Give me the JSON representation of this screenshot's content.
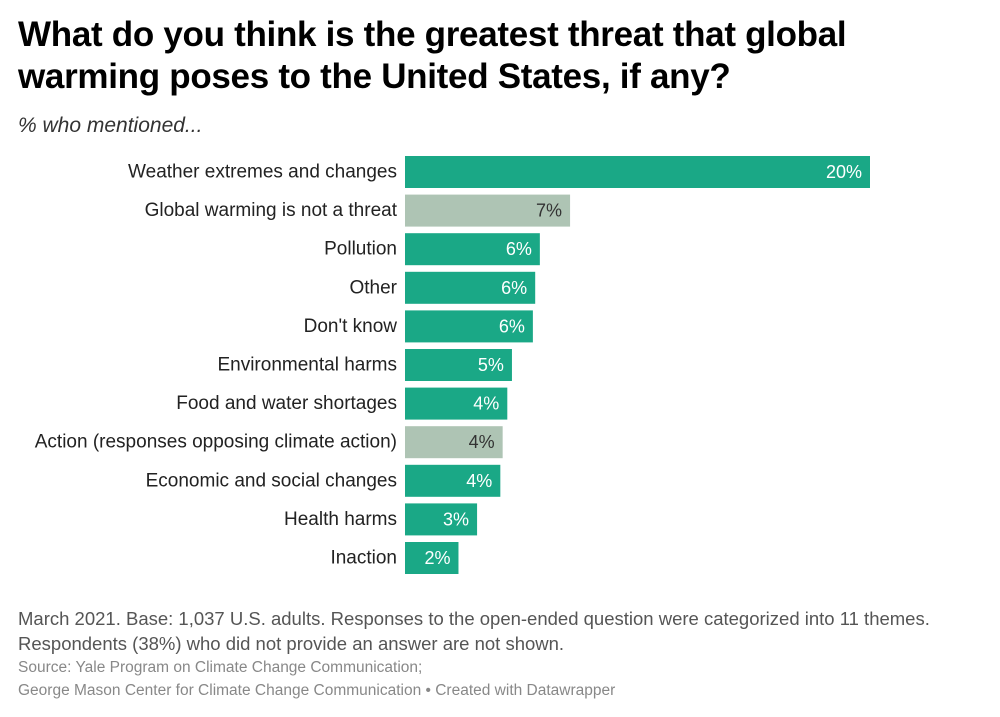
{
  "title": "What do you think is the greatest threat that global warming poses to the United States, if any?",
  "subtitle": "% who mentioned...",
  "note": "March 2021. Base: 1,037 U.S. adults. Responses to the open-ended question were categorized into 11 themes. Respondents (38%) who did not provide an answer are not shown.",
  "source_line1": "Source: Yale Program on Climate Change Communication;",
  "source_line2": "George Mason Center for Climate Change Communication • Created with Datawrapper",
  "colors": {
    "primary": "#1aa886",
    "muted": "#aec4b4",
    "label_on_primary": "#ffffff",
    "label_on_muted": "#333333"
  },
  "chart_data": {
    "type": "bar",
    "orientation": "horizontal",
    "categories": [
      "Weather extremes and changes",
      "Global warming is not a threat",
      "Pollution",
      "Other",
      "Don't know",
      "Environmental harms",
      "Food and water shortages",
      "Action (responses opposing climate action)",
      "Economic and social changes",
      "Health harms",
      "Inaction"
    ],
    "values": [
      20,
      7.1,
      5.8,
      5.6,
      5.5,
      4.6,
      4.4,
      4.2,
      4.1,
      3.1,
      2.3
    ],
    "labels": [
      "20%",
      "7%",
      "6%",
      "6%",
      "6%",
      "5%",
      "4%",
      "4%",
      "4%",
      "3%",
      "2%"
    ],
    "highlight": [
      "primary",
      "muted",
      "primary",
      "primary",
      "primary",
      "primary",
      "primary",
      "muted",
      "primary",
      "primary",
      "primary"
    ],
    "xlim": [
      0,
      20
    ],
    "unit": "%"
  }
}
